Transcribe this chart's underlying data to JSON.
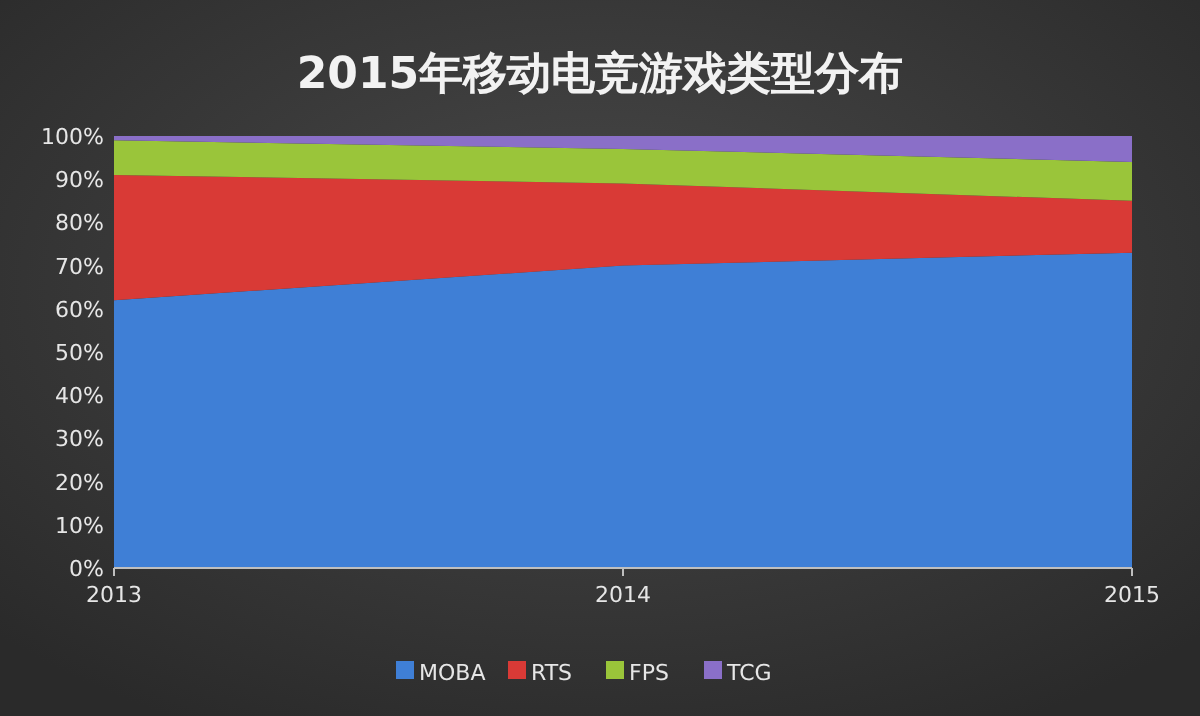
{
  "chart_data": {
    "type": "area",
    "title": "2015年移动电竞游戏类型分布",
    "categories": [
      "2013",
      "2014",
      "2015"
    ],
    "stacked": true,
    "ylim": [
      0,
      100
    ],
    "yticks": [
      {
        "value": 0,
        "label": "0%"
      },
      {
        "value": 10,
        "label": "10%"
      },
      {
        "value": 20,
        "label": "20%"
      },
      {
        "value": 30,
        "label": "30%"
      },
      {
        "value": 40,
        "label": "40%"
      },
      {
        "value": 50,
        "label": "50%"
      },
      {
        "value": 60,
        "label": "60%"
      },
      {
        "value": 70,
        "label": "70%"
      },
      {
        "value": 80,
        "label": "80%"
      },
      {
        "value": 90,
        "label": "90%"
      },
      {
        "value": 100,
        "label": "100%"
      }
    ],
    "legend": "bottom",
    "series": [
      {
        "name": "MOBA",
        "color": "#3f7fd6",
        "values": [
          62,
          70,
          73
        ]
      },
      {
        "name": "RTS",
        "color": "#d93a36",
        "values": [
          29,
          19,
          12
        ]
      },
      {
        "name": "FPS",
        "color": "#9ac53a",
        "values": [
          8,
          8,
          9
        ]
      },
      {
        "name": "TCG",
        "color": "#8a6fc8",
        "values": [
          1,
          3,
          6
        ]
      }
    ]
  }
}
